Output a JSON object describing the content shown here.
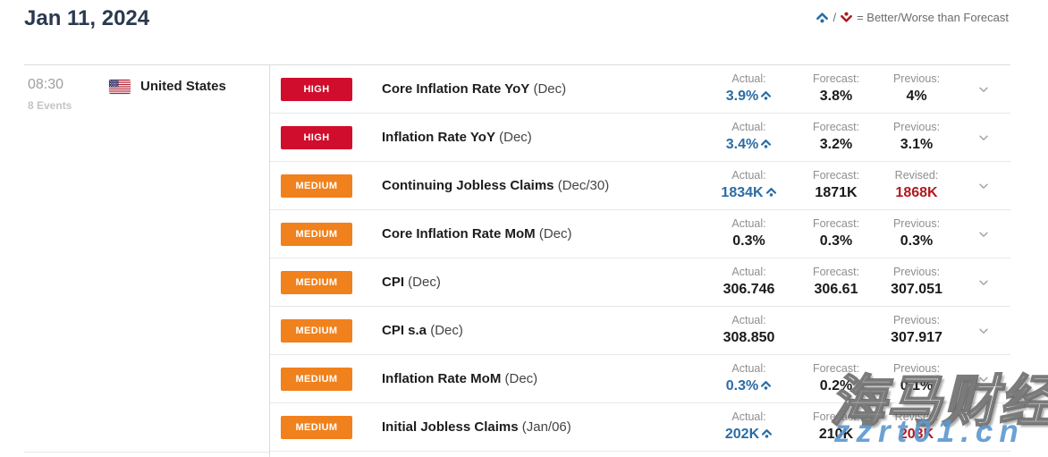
{
  "page": {
    "title": "Jan 11, 2024",
    "legend": {
      "separator": "/",
      "text": "= Better/Worse than Forecast",
      "better_color": "#2a6ca5",
      "worse_color": "#b11a21"
    }
  },
  "session": {
    "time": "08:30",
    "events_count": "8 Events",
    "country": "United States"
  },
  "importance_colors": {
    "HIGH": "#d00d2c",
    "MEDIUM": "#f0811c"
  },
  "events": [
    {
      "importance": "HIGH",
      "name": "Core Inflation Rate YoY",
      "period": "(Dec)",
      "cells": [
        {
          "label": "Actual:",
          "value": "3.9%",
          "trend": "up",
          "highlight": "better"
        },
        {
          "label": "Forecast:",
          "value": "3.8%"
        },
        {
          "label": "Previous:",
          "value": "4%"
        }
      ]
    },
    {
      "importance": "HIGH",
      "name": "Inflation Rate YoY",
      "period": "(Dec)",
      "cells": [
        {
          "label": "Actual:",
          "value": "3.4%",
          "trend": "up",
          "highlight": "better"
        },
        {
          "label": "Forecast:",
          "value": "3.2%"
        },
        {
          "label": "Previous:",
          "value": "3.1%"
        }
      ]
    },
    {
      "importance": "MEDIUM",
      "name": "Continuing Jobless Claims",
      "period": "(Dec/30)",
      "cells": [
        {
          "label": "Actual:",
          "value": "1834K",
          "trend": "up",
          "highlight": "better"
        },
        {
          "label": "Forecast:",
          "value": "1871K"
        },
        {
          "label": "Revised:",
          "value": "1868K",
          "highlight": "revised"
        }
      ]
    },
    {
      "importance": "MEDIUM",
      "name": "Core Inflation Rate MoM",
      "period": "(Dec)",
      "cells": [
        {
          "label": "Actual:",
          "value": "0.3%"
        },
        {
          "label": "Forecast:",
          "value": "0.3%"
        },
        {
          "label": "Previous:",
          "value": "0.3%"
        }
      ]
    },
    {
      "importance": "MEDIUM",
      "name": "CPI",
      "period": "(Dec)",
      "cells": [
        {
          "label": "Actual:",
          "value": "306.746"
        },
        {
          "label": "Forecast:",
          "value": "306.61"
        },
        {
          "label": "Previous:",
          "value": "307.051"
        }
      ]
    },
    {
      "importance": "MEDIUM",
      "name": "CPI s.a",
      "period": "(Dec)",
      "cells": [
        {
          "label": "Actual:",
          "value": "308.850"
        },
        {
          "label": "",
          "value": ""
        },
        {
          "label": "Previous:",
          "value": "307.917"
        }
      ]
    },
    {
      "importance": "MEDIUM",
      "name": "Inflation Rate MoM",
      "period": "(Dec)",
      "cells": [
        {
          "label": "Actual:",
          "value": "0.3%",
          "trend": "up",
          "highlight": "better"
        },
        {
          "label": "Forecast:",
          "value": "0.2%"
        },
        {
          "label": "Previous:",
          "value": "0.1%"
        }
      ]
    },
    {
      "importance": "MEDIUM",
      "name": "Initial Jobless Claims",
      "period": "(Jan/06)",
      "cells": [
        {
          "label": "Actual:",
          "value": "202K",
          "trend": "up",
          "highlight": "better"
        },
        {
          "label": "Forecast:",
          "value": "210K"
        },
        {
          "label": "Revised:",
          "value": "203K",
          "highlight": "revised"
        }
      ]
    }
  ],
  "watermark": {
    "line1": "海马财经",
    "line2": "zzrt01.cn"
  }
}
